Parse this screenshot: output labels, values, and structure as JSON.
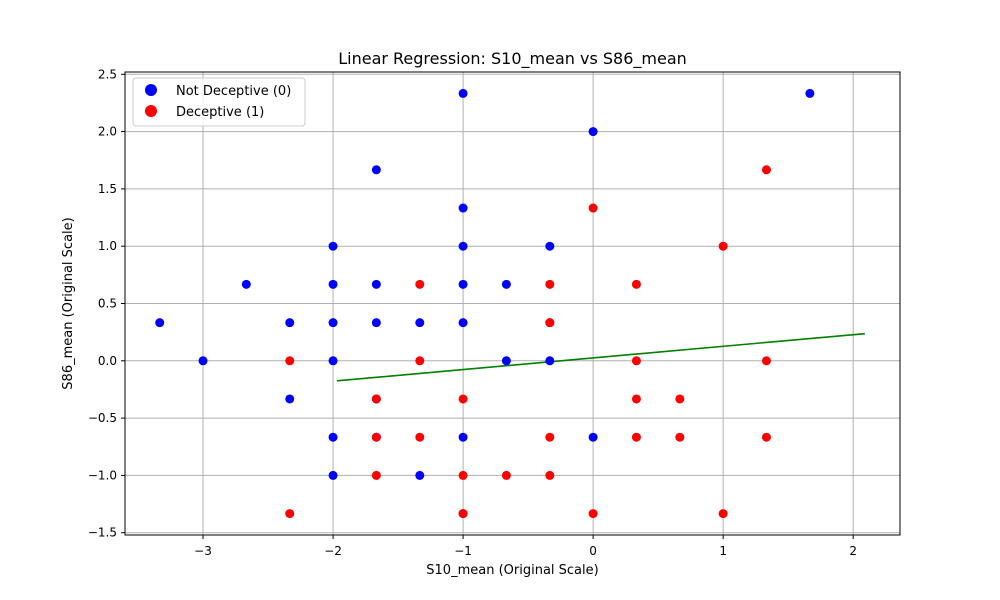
{
  "chart_data": {
    "type": "scatter",
    "title": "Linear Regression: S10_mean vs S86_mean",
    "xlabel": "S10_mean (Original Scale)",
    "ylabel": "S86_mean (Original Scale)",
    "xlim": [
      -3.6,
      2.36
    ],
    "ylim": [
      -1.52,
      2.52
    ],
    "xticks": [
      -3,
      -2,
      -1,
      0,
      1,
      2
    ],
    "yticks": [
      -1.5,
      -1.0,
      -0.5,
      0.0,
      0.5,
      1.0,
      1.5,
      2.0,
      2.5
    ],
    "xtick_labels": [
      "−3",
      "−2",
      "−1",
      "0",
      "1",
      "2"
    ],
    "ytick_labels": [
      "−1.5",
      "−1.0",
      "−0.5",
      "0.0",
      "0.5",
      "1.0",
      "1.5",
      "2.0",
      "2.5"
    ],
    "grid": true,
    "legend_position": "top-left",
    "series": [
      {
        "name": "Not Deceptive (0)",
        "color": "#0000ff",
        "points": [
          [
            -3.333,
            0.333
          ],
          [
            -3.0,
            0.0
          ],
          [
            -2.667,
            0.667
          ],
          [
            -2.333,
            0.333
          ],
          [
            -2.333,
            -0.333
          ],
          [
            -2.0,
            1.0
          ],
          [
            -2.0,
            0.667
          ],
          [
            -2.0,
            0.333
          ],
          [
            -2.0,
            0.0
          ],
          [
            -2.0,
            -0.667
          ],
          [
            -2.0,
            -1.0
          ],
          [
            -1.667,
            1.667
          ],
          [
            -1.667,
            0.667
          ],
          [
            -1.667,
            0.333
          ],
          [
            -1.667,
            -0.333
          ],
          [
            -1.667,
            -0.667
          ],
          [
            -1.333,
            0.333
          ],
          [
            -1.333,
            -1.0
          ],
          [
            -1.0,
            2.333
          ],
          [
            -1.0,
            1.333
          ],
          [
            -1.0,
            1.0
          ],
          [
            -1.0,
            0.667
          ],
          [
            -1.0,
            0.333
          ],
          [
            -1.0,
            -0.667
          ],
          [
            -1.0,
            -1.333
          ],
          [
            -0.667,
            0.667
          ],
          [
            -0.667,
            0.0
          ],
          [
            -0.333,
            1.0
          ],
          [
            -0.333,
            0.333
          ],
          [
            -0.333,
            0.0
          ],
          [
            0.0,
            2.0
          ],
          [
            0.0,
            -0.667
          ],
          [
            1.667,
            2.333
          ]
        ]
      },
      {
        "name": "Deceptive (1)",
        "color": "#ff0000",
        "points": [
          [
            -2.333,
            0.0
          ],
          [
            -2.333,
            -1.333
          ],
          [
            -1.667,
            -0.333
          ],
          [
            -1.667,
            -0.667
          ],
          [
            -1.667,
            -1.0
          ],
          [
            -1.333,
            0.667
          ],
          [
            -1.333,
            0.0
          ],
          [
            -1.333,
            -0.667
          ],
          [
            -1.0,
            -0.333
          ],
          [
            -1.0,
            -1.0
          ],
          [
            -1.0,
            -1.333
          ],
          [
            -0.667,
            -1.0
          ],
          [
            -0.333,
            0.667
          ],
          [
            -0.333,
            0.333
          ],
          [
            -0.333,
            -0.667
          ],
          [
            -0.333,
            -1.0
          ],
          [
            0.0,
            1.333
          ],
          [
            0.0,
            -1.333
          ],
          [
            0.333,
            0.667
          ],
          [
            0.333,
            0.0
          ],
          [
            0.333,
            -0.333
          ],
          [
            0.333,
            -0.667
          ],
          [
            0.667,
            -0.333
          ],
          [
            0.667,
            -0.667
          ],
          [
            1.0,
            1.0
          ],
          [
            1.0,
            -1.333
          ],
          [
            1.333,
            1.667
          ],
          [
            1.333,
            0.0
          ],
          [
            1.333,
            -0.667
          ]
        ]
      }
    ],
    "regression_line": {
      "color": "#008000",
      "x": [
        -1.97,
        2.09
      ],
      "y": [
        -0.175,
        0.237
      ]
    }
  }
}
